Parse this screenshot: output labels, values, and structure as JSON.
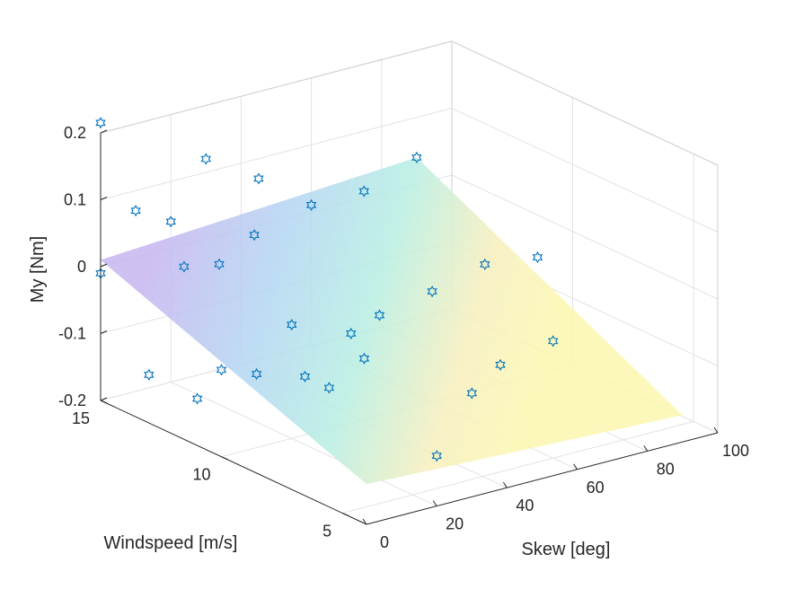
{
  "chart_data": {
    "type": "scatter",
    "projection": "3d",
    "xlabel": "Skew [deg]",
    "ylabel": "Windspeed [m/s]",
    "zlabel": "My [Nm]",
    "xlim": [
      0,
      100
    ],
    "ylim": [
      4,
      15
    ],
    "zlim": [
      -0.2,
      0.2
    ],
    "xticks": [
      0,
      20,
      40,
      60,
      80,
      100
    ],
    "yticks": [
      5,
      10,
      15
    ],
    "zticks": [
      -0.2,
      -0.1,
      0,
      0.1,
      0.2
    ],
    "xtick_labels": [
      "0",
      "20",
      "40",
      "60",
      "80",
      "100"
    ],
    "ytick_labels": [
      "5",
      "10",
      "15"
    ],
    "ztick_labels": [
      "-0.2",
      "-0.1",
      "0",
      "0.1",
      "0.2"
    ],
    "grid": true,
    "marker": "hexagram",
    "marker_color": "#0072BD",
    "surface": {
      "type": "plane",
      "x_range": [
        0,
        90
      ],
      "y_range": [
        4,
        15
      ],
      "z_corners": {
        "x0_ymax": 0.01,
        "x0_ymin": -0.14,
        "xmax_ymin": -0.16,
        "xmax_ymax": 0.04
      },
      "colormap": "parula-pastel",
      "alpha": 0.35
    },
    "points": [
      {
        "x": 0,
        "y": 15,
        "z": 0.215
      },
      {
        "x": 0,
        "y": 15,
        "z": -0.01
      },
      {
        "x": 0,
        "y": 13,
        "z": -0.128
      },
      {
        "x": 0,
        "y": 11,
        "z": -0.13
      },
      {
        "x": 0,
        "y": 10,
        "z": -0.07
      },
      {
        "x": 10,
        "y": 15,
        "z": 0.07
      },
      {
        "x": 10,
        "y": 13,
        "z": 0.02
      },
      {
        "x": 10,
        "y": 10,
        "z": -0.09
      },
      {
        "x": 10,
        "y": 7,
        "z": -0.06
      },
      {
        "x": 10,
        "y": 8,
        "z": -0.06
      },
      {
        "x": 20,
        "y": 15,
        "z": 0.04
      },
      {
        "x": 20,
        "y": 13,
        "z": 0.01
      },
      {
        "x": 20,
        "y": 10,
        "z": -0.03
      },
      {
        "x": 20,
        "y": 7,
        "z": -0.03
      },
      {
        "x": 20,
        "y": 4,
        "z": -0.125
      },
      {
        "x": 30,
        "y": 15,
        "z": 0.12
      },
      {
        "x": 30,
        "y": 13,
        "z": 0.04
      },
      {
        "x": 30,
        "y": 9,
        "z": -0.04
      },
      {
        "x": 30,
        "y": 4,
        "z": -0.045
      },
      {
        "x": 45,
        "y": 15,
        "z": 0.07
      },
      {
        "x": 45,
        "y": 10,
        "z": -0.05
      },
      {
        "x": 45,
        "y": 5,
        "z": -0.04
      },
      {
        "x": 60,
        "y": 15,
        "z": 0.01
      },
      {
        "x": 60,
        "y": 10,
        "z": -0.035
      },
      {
        "x": 60,
        "y": 5,
        "z": -0.025
      },
      {
        "x": 75,
        "y": 15,
        "z": 0.01
      },
      {
        "x": 75,
        "y": 10,
        "z": -0.015
      },
      {
        "x": 90,
        "y": 15,
        "z": 0.04
      },
      {
        "x": 90,
        "y": 10,
        "z": -0.025
      }
    ]
  }
}
